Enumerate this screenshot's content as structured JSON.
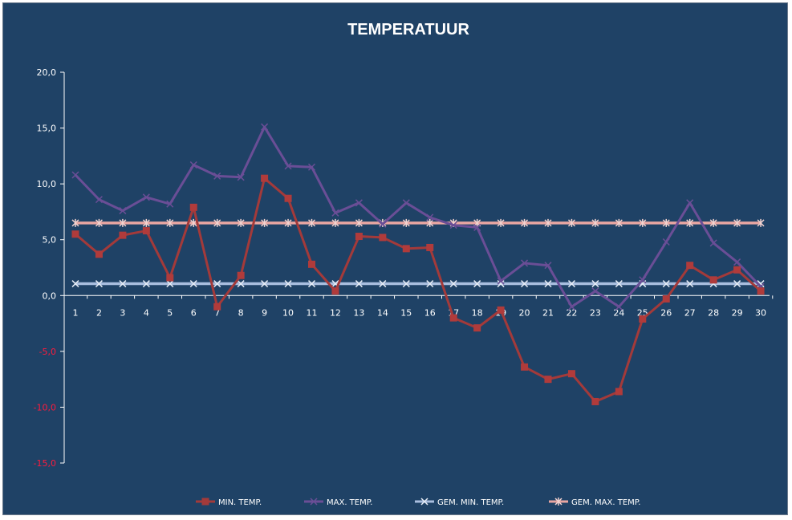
{
  "chart_data": {
    "type": "line",
    "title": "TEMPERATUUR",
    "xlabel": "",
    "ylabel": "",
    "categories": [
      "1",
      "2",
      "3",
      "4",
      "5",
      "6",
      "7",
      "8",
      "9",
      "10",
      "11",
      "12",
      "13",
      "14",
      "15",
      "16",
      "17",
      "18",
      "19",
      "20",
      "21",
      "22",
      "23",
      "24",
      "25",
      "26",
      "27",
      "28",
      "29",
      "30"
    ],
    "ylim": [
      -15,
      20
    ],
    "yticks": [
      "20,0",
      "15,0",
      "10,0",
      "5,0",
      "0,0",
      "-5,0",
      "-10,0",
      "-15,0"
    ],
    "ytick_values": [
      20,
      15,
      10,
      5,
      0,
      -5,
      -10,
      -15
    ],
    "negative_tick_color": "#ff1a3c",
    "legend_position": "bottom",
    "grid": false,
    "series": [
      {
        "name": "MIN. TEMP.",
        "color": "#a33a3a",
        "marker": "square",
        "values": [
          5.5,
          3.7,
          5.4,
          5.8,
          1.6,
          7.9,
          -1.0,
          1.8,
          10.5,
          8.7,
          2.8,
          0.4,
          5.3,
          5.2,
          4.2,
          4.3,
          -2.0,
          -2.9,
          -1.3,
          -6.4,
          -7.5,
          -7.0,
          -9.5,
          -8.6,
          -2.1,
          -0.3,
          2.7,
          1.4,
          2.3,
          0.4
        ]
      },
      {
        "name": "MAX. TEMP.",
        "color": "#6a4e96",
        "marker": "x",
        "values": [
          10.8,
          8.6,
          7.6,
          8.8,
          8.2,
          11.7,
          10.7,
          10.6,
          15.1,
          11.6,
          11.5,
          7.4,
          8.3,
          6.4,
          8.3,
          7.0,
          6.3,
          6.1,
          1.3,
          2.9,
          2.7,
          -1.0,
          0.4,
          -1.0,
          1.4,
          4.8,
          8.3,
          4.7,
          3.0,
          0.8
        ]
      },
      {
        "name": "GEM. MIN. TEMP.",
        "color": "#a9bedf",
        "marker": "x",
        "values": [
          1.06,
          1.06,
          1.06,
          1.06,
          1.06,
          1.06,
          1.06,
          1.06,
          1.06,
          1.06,
          1.06,
          1.06,
          1.06,
          1.06,
          1.06,
          1.06,
          1.06,
          1.06,
          1.06,
          1.06,
          1.06,
          1.06,
          1.06,
          1.06,
          1.06,
          1.06,
          1.06,
          1.06,
          1.06,
          1.06
        ]
      },
      {
        "name": "GEM. MAX. TEMP.",
        "color": "#e8a6a2",
        "marker": "asterisk",
        "values": [
          6.5,
          6.5,
          6.5,
          6.5,
          6.5,
          6.5,
          6.5,
          6.5,
          6.5,
          6.5,
          6.5,
          6.5,
          6.5,
          6.5,
          6.5,
          6.5,
          6.5,
          6.5,
          6.5,
          6.5,
          6.5,
          6.5,
          6.5,
          6.5,
          6.5,
          6.5,
          6.5,
          6.5,
          6.5,
          6.5
        ]
      }
    ]
  },
  "colors": {
    "background": "#1f4266",
    "axis": "#ffffff",
    "tick_text": "#ffffff"
  }
}
